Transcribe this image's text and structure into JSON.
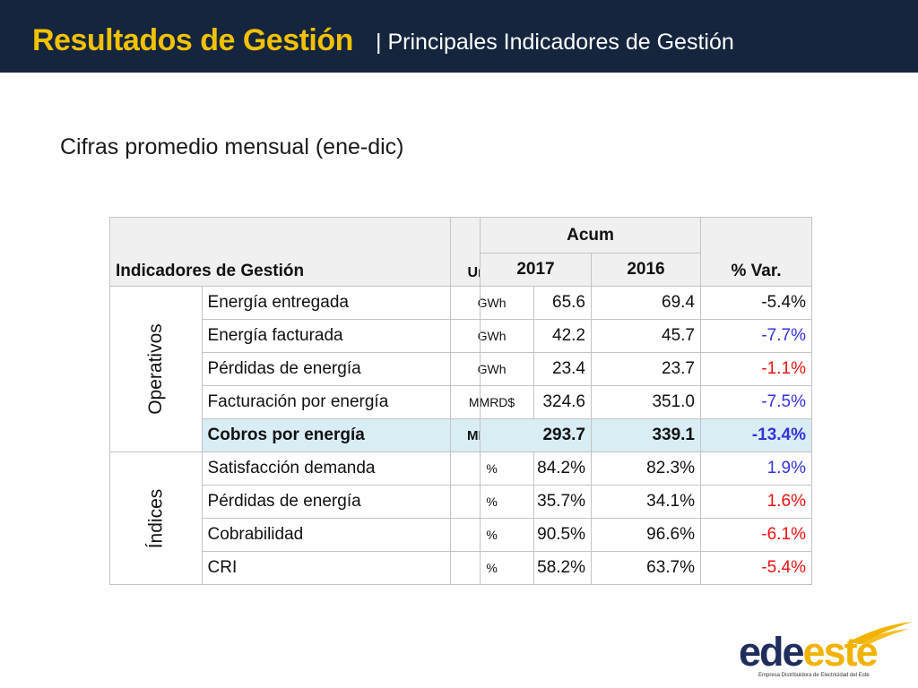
{
  "header": {
    "title": "Resultados de Gestión",
    "subtitle": "| Principales Indicadores de Gestión"
  },
  "subtitle": "Cifras promedio mensual (ene-dic)",
  "table": {
    "header": {
      "indicador": "Indicadores de Gestión",
      "unidad": "Unidad",
      "acum": "Acum",
      "year1": "2017",
      "year2": "2016",
      "var": "% Var."
    },
    "groups": [
      {
        "label": "Operativos",
        "rows": [
          {
            "indicador": "Energía entregada",
            "unidad": "GWh",
            "v2017": "65.6",
            "v2016": "69.4",
            "var": "-5.4%",
            "var_color": "black"
          },
          {
            "indicador": "Energía facturada",
            "unidad": "GWh",
            "v2017": "42.2",
            "v2016": "45.7",
            "var": "-7.7%",
            "var_color": "blue"
          },
          {
            "indicador": "Pérdidas de energía",
            "unidad": "GWh",
            "v2017": "23.4",
            "v2016": "23.7",
            "var": "-1.1%",
            "var_color": "red"
          },
          {
            "indicador": "Facturación por energía",
            "unidad": "MMRD$",
            "v2017": "324.6",
            "v2016": "351.0",
            "var": "-7.5%",
            "var_color": "blue"
          },
          {
            "indicador": "Cobros por energía",
            "unidad": "MMRD$",
            "v2017": "293.7",
            "v2016": "339.1",
            "var": "-13.4%",
            "var_color": "blue",
            "highlight": true
          }
        ]
      },
      {
        "label": "Índices",
        "rows": [
          {
            "indicador": "Satisfacción demanda",
            "unidad": "%",
            "v2017": "84.2%",
            "v2016": "82.3%",
            "var": "1.9%",
            "var_color": "blue"
          },
          {
            "indicador": "Pérdidas de energía",
            "unidad": "%",
            "v2017": "35.7%",
            "v2016": "34.1%",
            "var": "1.6%",
            "var_color": "red"
          },
          {
            "indicador": "Cobrabilidad",
            "unidad": "%",
            "v2017": "90.5%",
            "v2016": "96.6%",
            "var": "-6.1%",
            "var_color": "red"
          },
          {
            "indicador": "CRI",
            "unidad": "%",
            "v2017": "58.2%",
            "v2016": "63.7%",
            "var": "-5.4%",
            "var_color": "red"
          }
        ]
      }
    ]
  },
  "logo": {
    "name_part1": "ede",
    "name_part2": "este",
    "tagline": "Empresa Distribuidora de Electricidad del Este",
    "colors": {
      "navy": "#1f2d5c",
      "gold": "#f2b300"
    },
    "icon": "swoosh-logo-icon"
  },
  "colors": {
    "header_bg": "#14253d",
    "title": "#f2c200",
    "highlight_row": "#d9edf5",
    "var_blue": "#3333dd",
    "var_red": "#ee1111"
  }
}
